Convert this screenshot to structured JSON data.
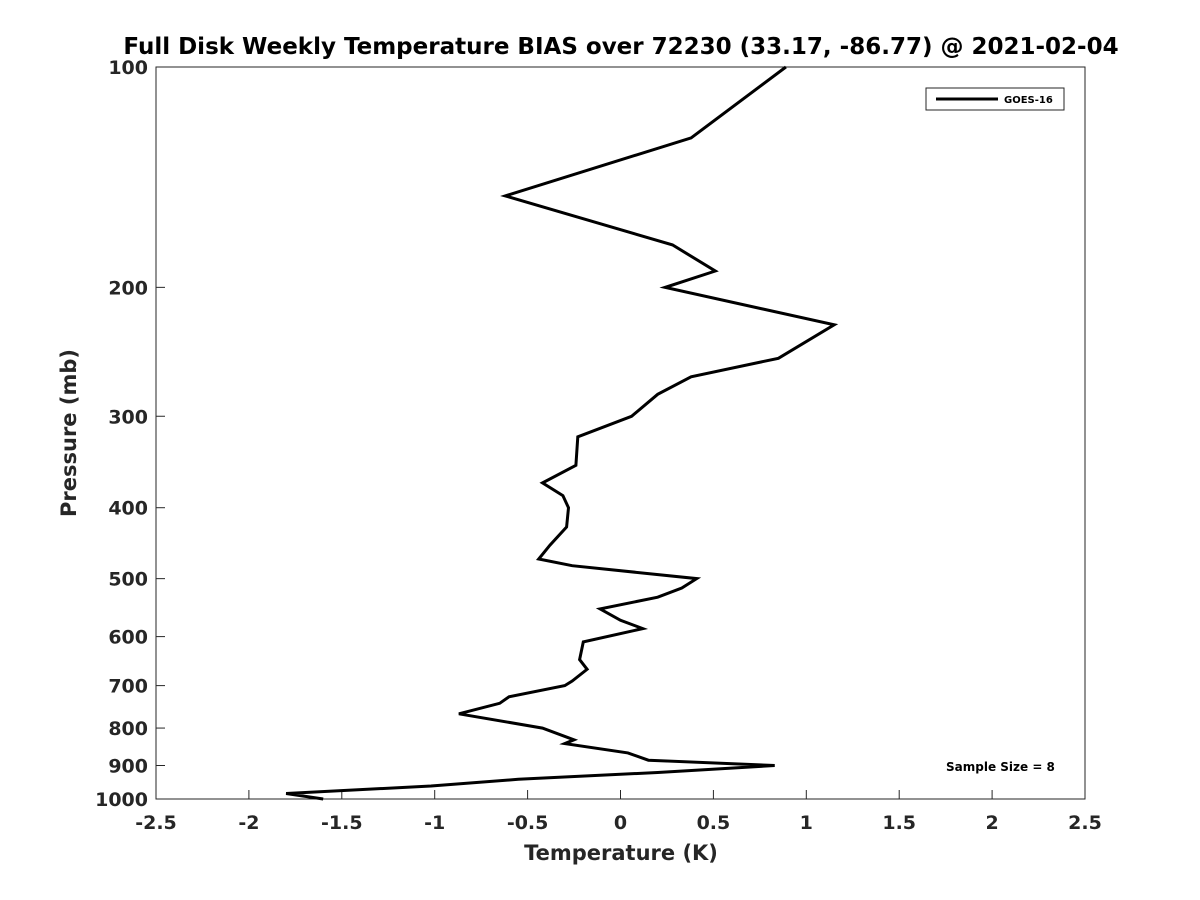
{
  "chart_data": {
    "type": "line",
    "title": "Full Disk Weekly Temperature BIAS over 72230 (33.17, -86.77) @ 2021-02-04",
    "xlabel": "Temperature (K)",
    "ylabel": "Pressure (mb)",
    "xlim": [
      -2.5,
      2.5
    ],
    "ylim": [
      1000,
      100
    ],
    "yscale": "log",
    "y_reversed": true,
    "grid": false,
    "xticks": [
      "-2.5",
      "-2",
      "-1.5",
      "-1",
      "-0.5",
      "0",
      "0.5",
      "1",
      "1.5",
      "2",
      "2.5"
    ],
    "xtick_values": [
      -2.5,
      -2,
      -1.5,
      -1,
      -0.5,
      0,
      0.5,
      1,
      1.5,
      2,
      2.5
    ],
    "yticks": [
      "100",
      "200",
      "300",
      "400",
      "500",
      "600",
      "700",
      "800",
      "900",
      "1000"
    ],
    "ytick_values": [
      100,
      200,
      300,
      400,
      500,
      600,
      700,
      800,
      900,
      1000
    ],
    "legend_position": "top-right",
    "series": [
      {
        "name": "GOES-16",
        "color": "#000000",
        "points": [
          {
            "x": 0.89,
            "y": 100
          },
          {
            "x": 0.38,
            "y": 125
          },
          {
            "x": -0.62,
            "y": 150
          },
          {
            "x": 0.28,
            "y": 175
          },
          {
            "x": 0.51,
            "y": 190
          },
          {
            "x": 0.24,
            "y": 200
          },
          {
            "x": 1.15,
            "y": 225
          },
          {
            "x": 0.85,
            "y": 250
          },
          {
            "x": 0.38,
            "y": 265
          },
          {
            "x": 0.2,
            "y": 280
          },
          {
            "x": 0.06,
            "y": 300
          },
          {
            "x": -0.23,
            "y": 320
          },
          {
            "x": -0.24,
            "y": 350
          },
          {
            "x": -0.42,
            "y": 370
          },
          {
            "x": -0.31,
            "y": 385
          },
          {
            "x": -0.28,
            "y": 400
          },
          {
            "x": -0.29,
            "y": 425
          },
          {
            "x": -0.38,
            "y": 450
          },
          {
            "x": -0.44,
            "y": 470
          },
          {
            "x": -0.26,
            "y": 480
          },
          {
            "x": 0.41,
            "y": 500
          },
          {
            "x": 0.33,
            "y": 515
          },
          {
            "x": 0.2,
            "y": 530
          },
          {
            "x": -0.11,
            "y": 550
          },
          {
            "x": 0.0,
            "y": 570
          },
          {
            "x": 0.12,
            "y": 585
          },
          {
            "x": -0.2,
            "y": 610
          },
          {
            "x": -0.22,
            "y": 645
          },
          {
            "x": -0.18,
            "y": 665
          },
          {
            "x": -0.26,
            "y": 690
          },
          {
            "x": -0.3,
            "y": 700
          },
          {
            "x": -0.6,
            "y": 725
          },
          {
            "x": -0.65,
            "y": 740
          },
          {
            "x": -0.87,
            "y": 765
          },
          {
            "x": -0.42,
            "y": 800
          },
          {
            "x": -0.25,
            "y": 830
          },
          {
            "x": -0.3,
            "y": 840
          },
          {
            "x": 0.04,
            "y": 865
          },
          {
            "x": 0.15,
            "y": 885
          },
          {
            "x": 0.83,
            "y": 900
          },
          {
            "x": 0.2,
            "y": 920
          },
          {
            "x": -0.55,
            "y": 940
          },
          {
            "x": -1.02,
            "y": 960
          },
          {
            "x": -1.8,
            "y": 983
          },
          {
            "x": -1.6,
            "y": 1000
          }
        ]
      }
    ],
    "annotation": "Sample Size = 8"
  }
}
